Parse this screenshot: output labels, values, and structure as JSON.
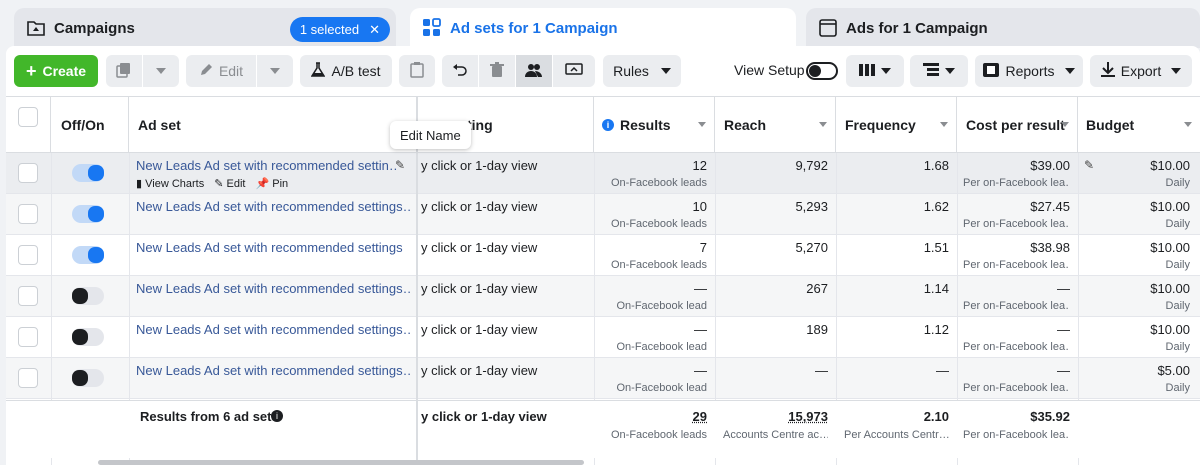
{
  "tabs": {
    "campaigns": {
      "label": "Campaigns",
      "badge": "1 selected",
      "badge_close": "✕"
    },
    "adsets": {
      "label": "Ad sets for 1 Campaign"
    },
    "ads": {
      "label": "Ads for 1 Campaign"
    }
  },
  "toolbar": {
    "create": "Create",
    "edit": "Edit",
    "ab_test": "A/B test",
    "rules": "Rules",
    "view_setup": "View Setup",
    "reports": "Reports",
    "export": "Export"
  },
  "columns": {
    "offon": "Off/On",
    "adset": "Ad set",
    "attribution": "ting",
    "results": "Results",
    "reach": "Reach",
    "frequency": "Frequency",
    "cost": "Cost per result",
    "budget": "Budget"
  },
  "tooltip": "Edit Name",
  "row_actions": {
    "view_charts": "View Charts",
    "edit": "Edit",
    "pin": "Pin"
  },
  "rows": [
    {
      "name": "New Leads Ad set with recommended settin…",
      "on": true,
      "attr": "y click or 1-day view",
      "results": "12",
      "results_sub": "On-Facebook leads",
      "reach": "9,792",
      "freq": "1.68",
      "cost": "$39.00",
      "cost_sub": "Per on-Facebook lea…",
      "budget": "$10.00",
      "budget_sub": "Daily"
    },
    {
      "name": "New Leads Ad set with recommended settings…",
      "on": true,
      "attr": "y click or 1-day view",
      "results": "10",
      "results_sub": "On-Facebook leads",
      "reach": "5,293",
      "freq": "1.62",
      "cost": "$27.45",
      "cost_sub": "Per on-Facebook lea…",
      "budget": "$10.00",
      "budget_sub": "Daily"
    },
    {
      "name": "New Leads Ad set with recommended settings",
      "on": true,
      "attr": "y click or 1-day view",
      "results": "7",
      "results_sub": "On-Facebook leads",
      "reach": "5,270",
      "freq": "1.51",
      "cost": "$38.98",
      "cost_sub": "Per on-Facebook lea…",
      "budget": "$10.00",
      "budget_sub": "Daily"
    },
    {
      "name": "New Leads Ad set with recommended settings…",
      "on": false,
      "attr": "y click or 1-day view",
      "results": "—",
      "results_sub": "On-Facebook lead",
      "reach": "267",
      "freq": "1.14",
      "cost": "—",
      "cost_sub": "Per on-Facebook lea…",
      "budget": "$10.00",
      "budget_sub": "Daily"
    },
    {
      "name": "New Leads Ad set with recommended settings…",
      "on": false,
      "attr": "y click or 1-day view",
      "results": "—",
      "results_sub": "On-Facebook lead",
      "reach": "189",
      "freq": "1.12",
      "cost": "—",
      "cost_sub": "Per on-Facebook lea…",
      "budget": "$10.00",
      "budget_sub": "Daily"
    },
    {
      "name": "New Leads Ad set with recommended settings…",
      "on": false,
      "attr": "y click or 1-day view",
      "results": "—",
      "results_sub": "On-Facebook lead",
      "reach": "—",
      "freq": "—",
      "cost": "—",
      "cost_sub": "Per on-Facebook lea…",
      "budget": "$5.00",
      "budget_sub": "Daily"
    }
  ],
  "footer": {
    "label": "Results from 6 ad sets",
    "attr": "y click or 1-day view",
    "results": "29",
    "results_sub": "On-Facebook leads",
    "reach": "15,973",
    "reach_sub": "Accounts Centre ac…",
    "freq": "2.10",
    "freq_sub": "Per Accounts Centr…",
    "cost": "$35.92",
    "cost_sub": "Per on-Facebook lea…"
  },
  "colors": {
    "accent": "#1877f2",
    "create": "#42b72a",
    "link": "#385898"
  }
}
